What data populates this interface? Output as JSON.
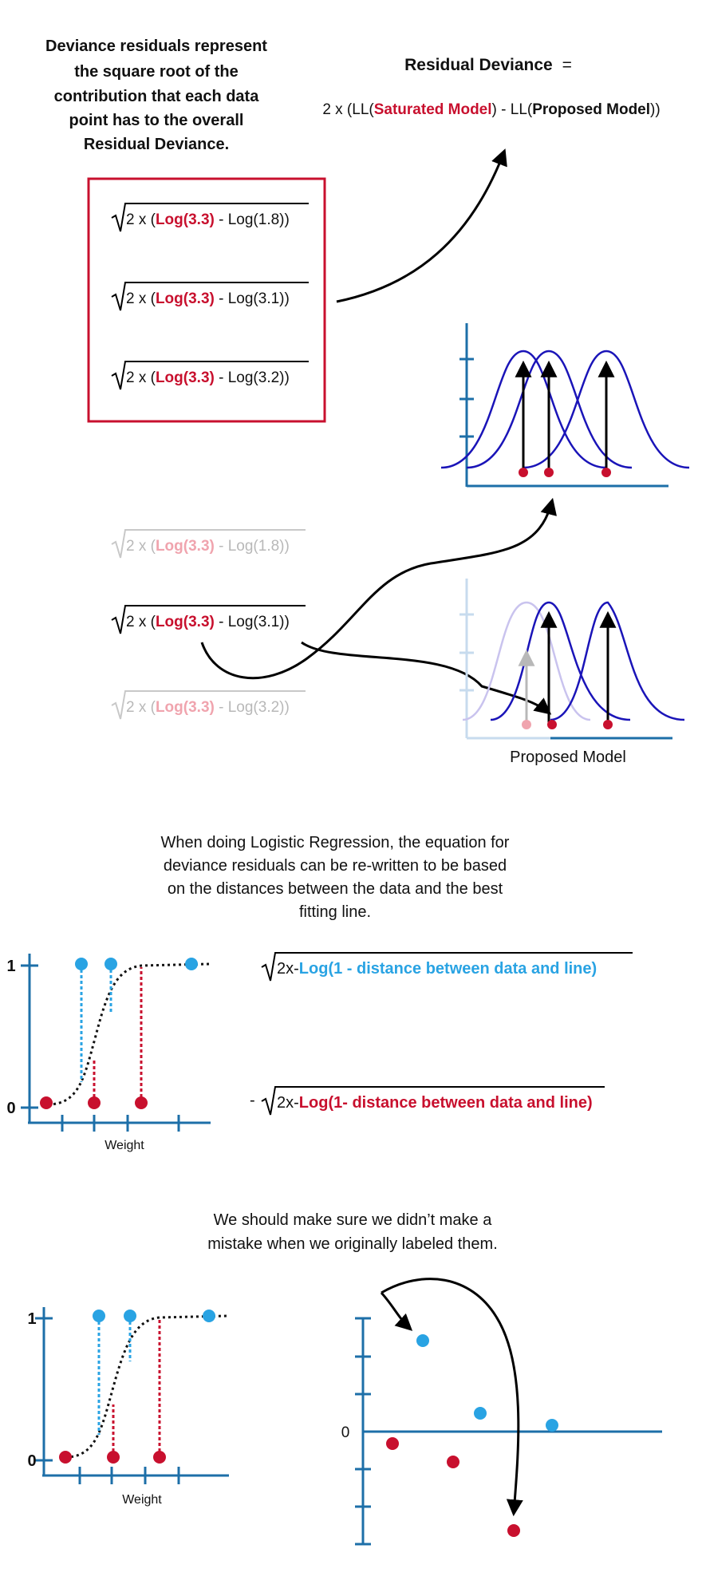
{
  "colors": {
    "red": "#c8102e",
    "light_blue": "#29a3e3",
    "axis_blue": "#1d6fa8",
    "curve_blue": "#1a14b8",
    "faded_red": "#f0a4ae",
    "faded_gray": "#b8b8b8",
    "faded_blue": "#c7dbee"
  },
  "section1": {
    "intro": {
      "line1": "Deviance residuals represent",
      "line2": "the square root of the",
      "line3": "contribution that each data",
      "line4": "point has to the overall",
      "line5": "Residual Deviance."
    },
    "rd_title": "Residual Deviance",
    "rd_eq": "=",
    "rd_formula": {
      "prefix": "2 x (LL(",
      "saturated": "Saturated Model",
      "middle": ") - LL(",
      "proposed": "Proposed Model",
      "suffix": "))"
    },
    "terms": [
      {
        "prefix": "2 x (",
        "sat": "Log(3.3)",
        "rest": " - Log(1.8))"
      },
      {
        "prefix": "2 x (",
        "sat": "Log(3.3)",
        "rest": " - Log(3.1))"
      },
      {
        "prefix": "2 x (",
        "sat": "Log(3.3)",
        "rest": " - Log(3.2))"
      }
    ],
    "proposed_label": "Proposed Model"
  },
  "section2": {
    "intro": {
      "line1": "When doing Logistic Regression, the equation for",
      "line2": "deviance residuals can be re-written to be based",
      "line3": "on the distances between the data and the best",
      "line4": "fitting line."
    },
    "y_tick_top": "1",
    "y_tick_bottom": "0",
    "xlabel": "Weight",
    "formula_pos": {
      "prefix": "2x",
      "dash": "-",
      "body": "Log(1 - distance between data and line)"
    },
    "formula_neg": {
      "sign": "-",
      "prefix": "2x",
      "dash": "-",
      "body": "Log(1- distance between data and line)"
    }
  },
  "section3": {
    "intro": {
      "line1": "We should make sure we didn’t make a",
      "line2": "mistake when we originally labeled them."
    },
    "y_tick_top": "1",
    "y_tick_bottom": "0",
    "xlabel": "Weight",
    "residual_zero": "0"
  }
}
